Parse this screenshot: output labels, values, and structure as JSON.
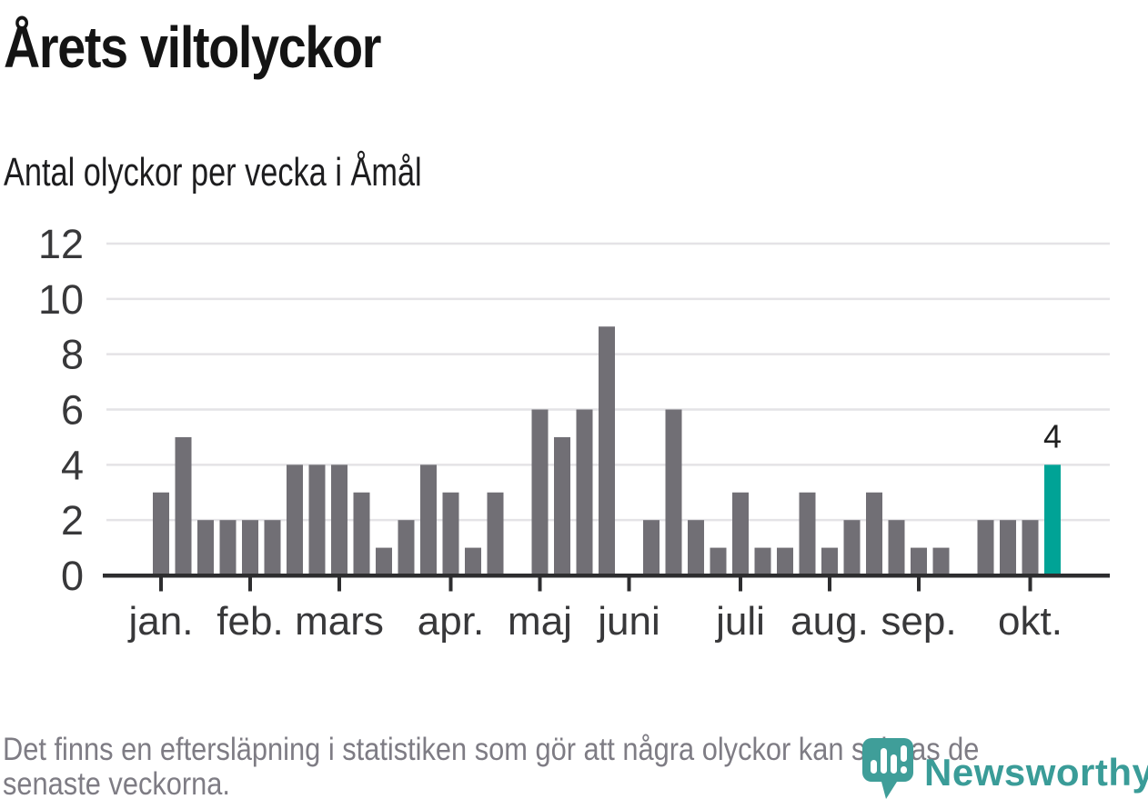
{
  "header": {
    "title": "Årets viltolyckor",
    "subtitle": "Antal olyckor per vecka i Åmål"
  },
  "chart_data": {
    "type": "bar",
    "title": "Årets viltolyckor",
    "subtitle": "Antal olyckor per vecka i Åmål",
    "x_unit": "vecka",
    "values": [
      3,
      5,
      2,
      2,
      2,
      2,
      4,
      4,
      4,
      3,
      1,
      2,
      4,
      3,
      1,
      3,
      0,
      6,
      5,
      6,
      9,
      0,
      2,
      6,
      2,
      1,
      3,
      1,
      1,
      3,
      1,
      2,
      3,
      2,
      1,
      1,
      0,
      2,
      2,
      2,
      4
    ],
    "highlight_index": 40,
    "highlight_value_label": "4",
    "month_ticks": [
      {
        "label": "jan.",
        "week_index": 0
      },
      {
        "label": "feb.",
        "week_index": 4
      },
      {
        "label": "mars",
        "week_index": 8
      },
      {
        "label": "apr.",
        "week_index": 13
      },
      {
        "label": "maj",
        "week_index": 17
      },
      {
        "label": "juni",
        "week_index": 21
      },
      {
        "label": "juli",
        "week_index": 26
      },
      {
        "label": "aug.",
        "week_index": 30
      },
      {
        "label": "sep.",
        "week_index": 34
      },
      {
        "label": "okt.",
        "week_index": 39
      }
    ],
    "ylim": [
      0,
      12
    ],
    "ytick_step": 2,
    "grid": true,
    "legend": "none",
    "colors": {
      "bar": "#716f75",
      "highlight": "#00a396",
      "grid": "#e4e3e6",
      "axis": "#2d2d2f",
      "tick_label": "#38383a",
      "annotation": "#1f1f1f"
    }
  },
  "footer": {
    "line1": "Det finns en eftersläpning i statistiken som gör att några olyckor kan saknas de",
    "line2": "senaste veckorna."
  },
  "logo": {
    "brand": "Newsworthy",
    "color": "#3a9c98",
    "pin_color": "#3f9e99"
  }
}
